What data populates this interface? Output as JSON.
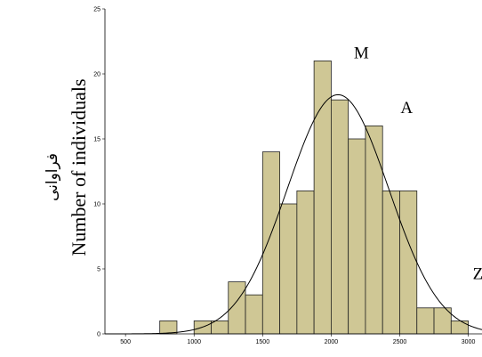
{
  "chart_data": {
    "type": "bar",
    "subtype": "histogram",
    "ylabel": "Number of individuals",
    "ylabel_secondary": "فراوانی",
    "xlim": [
      350,
      3100
    ],
    "ylim": [
      0,
      25
    ],
    "x_ticks": [
      "500",
      "1000",
      "1500",
      "2000",
      "2500",
      "3000"
    ],
    "y_ticks": [
      "0",
      "5",
      "10",
      "15",
      "20",
      "25"
    ],
    "bin_width": 125,
    "bins": [
      {
        "start": 750,
        "end": 875,
        "count": 1
      },
      {
        "start": 875,
        "end": 1000,
        "count": 0
      },
      {
        "start": 1000,
        "end": 1125,
        "count": 1
      },
      {
        "start": 1125,
        "end": 1250,
        "count": 1
      },
      {
        "start": 1250,
        "end": 1375,
        "count": 4
      },
      {
        "start": 1375,
        "end": 1500,
        "count": 3
      },
      {
        "start": 1500,
        "end": 1625,
        "count": 14
      },
      {
        "start": 1625,
        "end": 1750,
        "count": 10
      },
      {
        "start": 1750,
        "end": 1875,
        "count": 11
      },
      {
        "start": 1875,
        "end": 2000,
        "count": 21
      },
      {
        "start": 2000,
        "end": 2125,
        "count": 18
      },
      {
        "start": 2125,
        "end": 2250,
        "count": 15
      },
      {
        "start": 2250,
        "end": 2375,
        "count": 16
      },
      {
        "start": 2375,
        "end": 2500,
        "count": 11
      },
      {
        "start": 2500,
        "end": 2625,
        "count": 11
      },
      {
        "start": 2625,
        "end": 2750,
        "count": 2
      },
      {
        "start": 2750,
        "end": 2875,
        "count": 2
      },
      {
        "start": 2875,
        "end": 3000,
        "count": 1
      }
    ],
    "normal_curve": {
      "mean": 2050,
      "sd": 370,
      "peak": 18.4
    },
    "annotations": [
      {
        "text": "M",
        "x": 2220,
        "y": 21.2
      },
      {
        "text": "A",
        "x": 2550,
        "y": 17
      },
      {
        "text": "Z",
        "x": 3070,
        "y": 4.2
      }
    ],
    "grid": false,
    "colors": {
      "bar_fill": "#cfc795",
      "bar_stroke": "#222222",
      "curve": "#000000"
    }
  }
}
